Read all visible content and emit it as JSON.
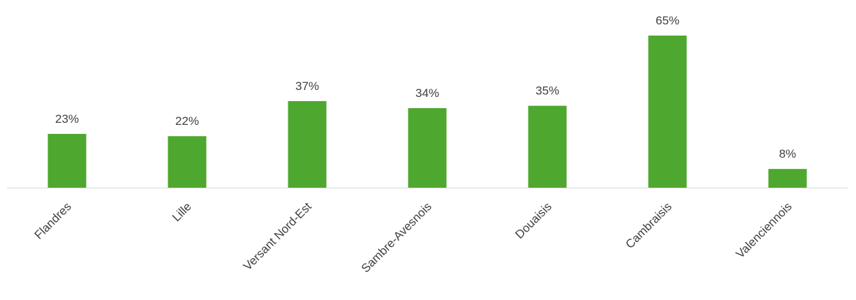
{
  "chart_data": {
    "type": "bar",
    "categories": [
      "Flandres",
      "Lille",
      "Versant Nord-Est",
      "Sambre-Avesnois",
      "Douaisis",
      "Cambraisis",
      "Valenciennois"
    ],
    "values": [
      23,
      22,
      37,
      34,
      35,
      65,
      8
    ],
    "data_labels": [
      "23%",
      "22%",
      "37%",
      "34%",
      "35%",
      "65%",
      "8%"
    ],
    "unit": "%",
    "title": "",
    "xlabel": "",
    "ylabel": "",
    "ylim": [
      0,
      65
    ],
    "grid": false,
    "legend": "none",
    "bar_color": "#4ea72e",
    "axis_color": "#d9d9d9"
  }
}
